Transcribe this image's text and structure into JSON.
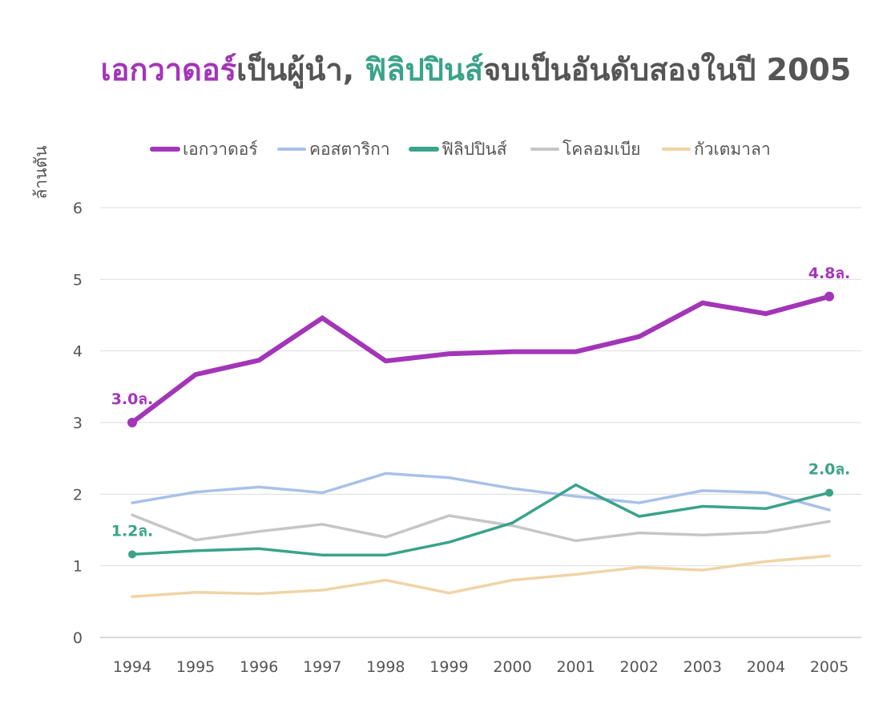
{
  "chart_data": {
    "type": "line",
    "title_parts": [
      {
        "text": "เอกวาดอร์",
        "color": "#a335b8"
      },
      {
        "text": "เป็นผู้นำ, ",
        "color": "#555555"
      },
      {
        "text": "ฟิลิปปินส์",
        "color": "#3aa38a"
      },
      {
        "text": "จบเป็นอันดับสองในปี 2005",
        "color": "#555555"
      }
    ],
    "ylabel": "ล้านตัน",
    "x": [
      "1994",
      "1995",
      "1996",
      "1997",
      "1998",
      "1999",
      "2000",
      "2001",
      "2002",
      "2003",
      "2004",
      "2005"
    ],
    "yticks": [
      "0",
      "1",
      "2",
      "3",
      "4",
      "5",
      "6"
    ],
    "ylim": [
      0,
      6
    ],
    "grid": true,
    "legend_position": "top",
    "series": [
      {
        "name": "เอกวาดอร์",
        "color": "#a335b8",
        "emphasis": true,
        "values": [
          3.0,
          3.67,
          3.87,
          4.46,
          3.86,
          3.96,
          3.99,
          3.99,
          4.2,
          4.67,
          4.52,
          4.76
        ]
      },
      {
        "name": "คอสตาริกา",
        "color": "#a9c1e8",
        "emphasis": false,
        "values": [
          1.88,
          2.03,
          2.1,
          2.02,
          2.29,
          2.23,
          2.08,
          1.97,
          1.88,
          2.05,
          2.02,
          1.78
        ]
      },
      {
        "name": "ฟิลิปปินส์",
        "color": "#3aa38a",
        "emphasis": true,
        "values": [
          1.16,
          1.21,
          1.24,
          1.15,
          1.15,
          1.33,
          1.6,
          2.13,
          1.69,
          1.83,
          1.8,
          2.02
        ]
      },
      {
        "name": "โคลอมเบีย",
        "color": "#c6c6c6",
        "emphasis": false,
        "values": [
          1.71,
          1.36,
          1.48,
          1.58,
          1.4,
          1.7,
          1.56,
          1.35,
          1.46,
          1.43,
          1.47,
          1.62
        ]
      },
      {
        "name": "กัวเตมาลา",
        "color": "#f0d4a6",
        "emphasis": false,
        "values": [
          0.57,
          0.63,
          0.61,
          0.66,
          0.8,
          0.62,
          0.8,
          0.88,
          0.98,
          0.94,
          1.06,
          1.14
        ]
      }
    ],
    "annotations": [
      {
        "series": 0,
        "index": 0,
        "text": "3.0ล.",
        "color": "#a335b8"
      },
      {
        "series": 0,
        "index": 11,
        "text": "4.8ล.",
        "color": "#a335b8"
      },
      {
        "series": 2,
        "index": 0,
        "text": "1.2ล.",
        "color": "#3aa38a"
      },
      {
        "series": 2,
        "index": 11,
        "text": "2.0ล.",
        "color": "#3aa38a"
      }
    ]
  }
}
